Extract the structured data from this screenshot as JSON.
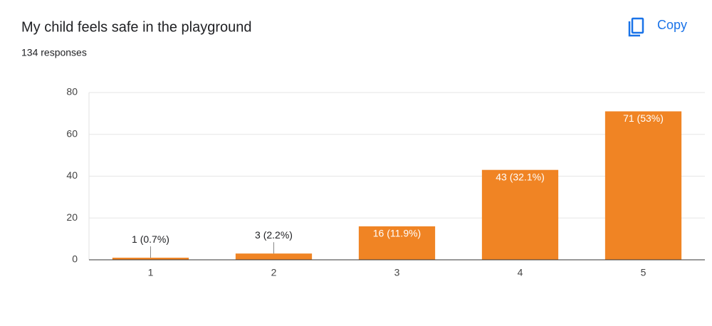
{
  "copy_label": "Copy",
  "chart_data": {
    "type": "bar",
    "title": "My child feels safe in the playground",
    "subtitle": "134 responses",
    "categories": [
      "1",
      "2",
      "3",
      "4",
      "5"
    ],
    "values": [
      1,
      3,
      16,
      43,
      71
    ],
    "value_labels": [
      "1 (0.7%)",
      "3 (2.2%)",
      "16 (11.9%)",
      "43 (32.1%)",
      "71 (53%)"
    ],
    "color": "#f08424",
    "ylim": [
      0,
      80
    ],
    "yticks": [
      0,
      20,
      40,
      60,
      80
    ],
    "grid": true
  }
}
